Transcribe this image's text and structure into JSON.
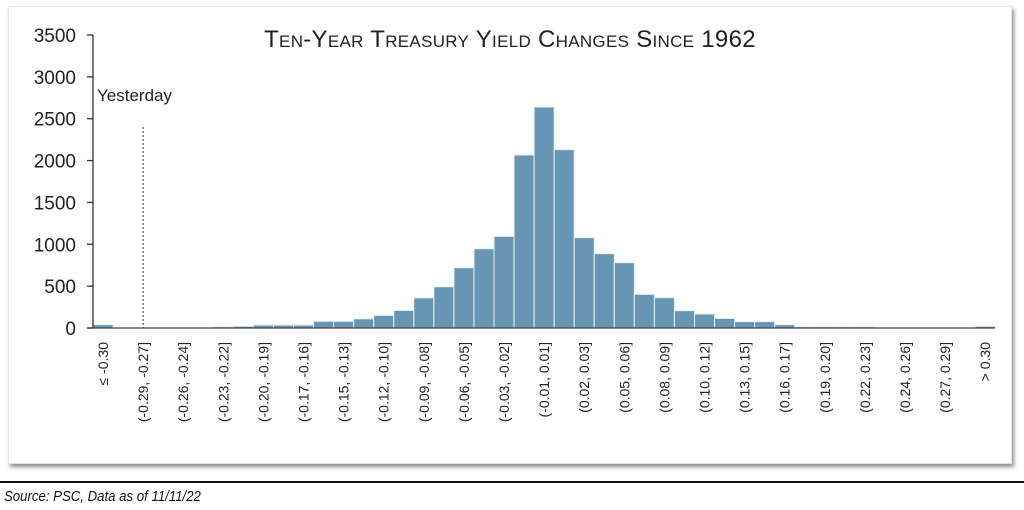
{
  "chart_data": {
    "type": "bar",
    "title": "Ten-Year Treasury Yield Changes Since 1962",
    "xlabel": "",
    "ylabel": "",
    "ylim": [
      0,
      3500
    ],
    "yticks": [
      0,
      500,
      1000,
      1500,
      2000,
      2500,
      3000,
      3500
    ],
    "grid": false,
    "bar_color": "#6796b4",
    "tick_labels": [
      "≤ -0.30",
      "(-0.29, -0.27]",
      "(-0.26, -0.24]",
      "(-0.23, -0.22]",
      "(-0.20, -0.19]",
      "(-0.17, -0.16]",
      "(-0.15, -0.13]",
      "(-0.12, -0.10]",
      "(-0.09, -0.08]",
      "(-0.06, -0.05]",
      "(-0.03, -0.02]",
      "(-0.01, 0.01]",
      "(0.02, 0.03]",
      "(0.05, 0.06]",
      "(0.08, 0.09]",
      "(0.10, 0.12]",
      "(0.13, 0.15]",
      "(0.16, 0.17]",
      "(0.19, 0.20]",
      "(0.22, 0.23]",
      "(0.24, 0.26]",
      "(0.27, 0.29]",
      "> 0.30"
    ],
    "tick_every_n_bars": 2,
    "values": [
      40,
      0,
      0,
      0,
      0,
      0,
      15,
      20,
      35,
      35,
      35,
      80,
      80,
      110,
      150,
      210,
      360,
      493,
      720,
      947,
      1095,
      2067,
      2640,
      2130,
      1080,
      888,
      780,
      402,
      362,
      207,
      167,
      115,
      76,
      76,
      40,
      15,
      15,
      15,
      15,
      0,
      0,
      0,
      0,
      0,
      20
    ],
    "annotation": {
      "label": "Yesterday",
      "bar_index": 2.5
    }
  },
  "footer": {
    "source": "Source: PSC, Data as of 11/11/22"
  }
}
